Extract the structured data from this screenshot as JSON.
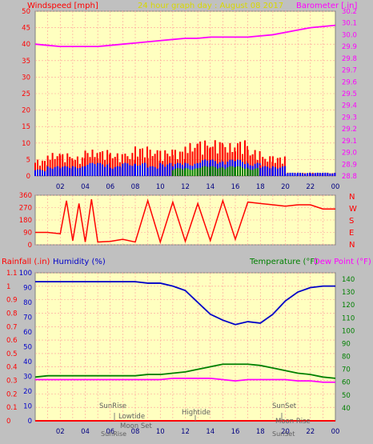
{
  "header": {
    "left_label": "Windspeed [mph]",
    "title": "24 hour graph day : August 08 2017",
    "right_label": "Barometer [.in]"
  },
  "direction_labels": [
    "N",
    "W",
    "S",
    "E",
    "N"
  ],
  "mid_labels": {
    "rainfall": "Rainfall (.in)",
    "humidity": "Humidity (%)",
    "temperature": "Temperature (°F)",
    "dewpoint": "Dew Point (°F)"
  },
  "x_ticks": [
    "02",
    "04",
    "06",
    "08",
    "10",
    "12",
    "14",
    "16",
    "18",
    "20",
    "22",
    "00"
  ],
  "events": {
    "sunrise_upper": "SunRise",
    "lowtide": "Lowtide",
    "moonset": "Moon Set",
    "hightide": "Hightide",
    "sunset_upper": "SunSet",
    "moonrise": "Moon Rise",
    "sunrise_axis": "SunRise",
    "sunset_axis": "SunSet"
  },
  "colors": {
    "plot_bg": "#ffffc0",
    "grid": "#ff9999",
    "wind": "#ff0000",
    "gust": "#0000ff",
    "wind_green": "#008000",
    "barometer": "#ff00ff",
    "direction": "#ff0000",
    "humidity": "#0000c8",
    "temperature": "#008000",
    "dewpoint": "#ff00ff",
    "rain": "#ff0000",
    "axis_text": "#ff0000"
  },
  "chart_data": [
    {
      "type": "line",
      "title": "24 hour graph day : August 08 2017",
      "xlabel": "",
      "ylabel": "Windspeed [mph]",
      "ylim": [
        0,
        50
      ],
      "y_ticks": [
        0,
        5,
        10,
        15,
        20,
        25,
        30,
        35,
        40,
        45,
        50
      ],
      "y2label": "Barometer [.in]",
      "y2lim": [
        28.8,
        30.2
      ],
      "y2_ticks": [
        28.8,
        28.9,
        29.0,
        29.1,
        29.2,
        29.3,
        29.4,
        29.5,
        29.6,
        29.7,
        29.8,
        29.9,
        30.0,
        30.1,
        30.2
      ],
      "x_ticks": [
        "02",
        "04",
        "06",
        "08",
        "10",
        "12",
        "14",
        "16",
        "18",
        "20",
        "22",
        "00"
      ],
      "series": [
        {
          "name": "Barometer [.in]",
          "axis": "right",
          "x": [
            0,
            1,
            2,
            3,
            4,
            5,
            6,
            7,
            8,
            9,
            10,
            11,
            12,
            13,
            14,
            15,
            16,
            17,
            18,
            19,
            20,
            21,
            22,
            23,
            24
          ],
          "values": [
            29.92,
            29.91,
            29.9,
            29.9,
            29.9,
            29.9,
            29.91,
            29.92,
            29.93,
            29.94,
            29.95,
            29.96,
            29.97,
            29.97,
            29.98,
            29.98,
            29.98,
            29.98,
            29.99,
            30.0,
            30.02,
            30.04,
            30.06,
            30.07,
            30.08
          ]
        },
        {
          "name": "Windspeed [mph]",
          "axis": "left",
          "x": [
            0,
            1,
            2,
            3,
            4,
            5,
            6,
            7,
            8,
            9,
            10,
            11,
            12,
            13,
            14,
            15,
            16,
            17,
            18,
            19,
            20,
            21,
            22,
            23,
            24
          ],
          "values": [
            2,
            3,
            3,
            3,
            4,
            4,
            3,
            4,
            4,
            3,
            4,
            4,
            4,
            5,
            5,
            5,
            5,
            4,
            3,
            3,
            1,
            1,
            1,
            1,
            1
          ],
          "gust_values": [
            5,
            7,
            7,
            6,
            8,
            8,
            7,
            7,
            9,
            8,
            8,
            8,
            10,
            11,
            11,
            10,
            11,
            8,
            6,
            6,
            1,
            1,
            1,
            1,
            1
          ]
        }
      ]
    },
    {
      "type": "line",
      "title": "",
      "ylabel": "",
      "ylim": [
        0,
        360
      ],
      "y_ticks": [
        0,
        90,
        180,
        270,
        360
      ],
      "series": [
        {
          "name": "",
          "x": [
            0,
            1,
            2,
            2.5,
            3,
            3.5,
            4,
            4.5,
            5,
            6,
            7,
            8,
            9,
            10,
            11,
            12,
            13,
            14,
            15,
            16,
            17,
            18,
            19,
            20,
            21,
            22,
            23,
            24
          ],
          "values": [
            90,
            90,
            80,
            320,
            30,
            300,
            20,
            330,
            20,
            25,
            40,
            20,
            320,
            20,
            310,
            25,
            300,
            30,
            320,
            40,
            310,
            300,
            290,
            280,
            290,
            290,
            260,
            260
          ]
        }
      ]
    },
    {
      "type": "line",
      "title": "",
      "ylabel": "Rainfall (.in)",
      "ylim": [
        0,
        1.1
      ],
      "y_ticks": [
        0,
        0.1,
        0.2,
        0.3,
        0.4,
        0.5,
        0.6,
        0.7,
        0.8,
        0.9,
        1,
        1.1
      ],
      "y2label": "Humidity (%)",
      "y2lim": [
        0,
        100
      ],
      "y2_ticks": [
        0,
        10,
        20,
        30,
        40,
        50,
        60,
        70,
        80,
        90,
        100
      ],
      "y3label": "Temperature (°F)",
      "y3lim": [
        30,
        145
      ],
      "y3_ticks": [
        40,
        50,
        60,
        70,
        80,
        90,
        100,
        110,
        120,
        130,
        140
      ],
      "x_ticks": [
        "02",
        "04",
        "06",
        "08",
        "10",
        "12",
        "14",
        "16",
        "18",
        "20",
        "22",
        "00"
      ],
      "series": [
        {
          "name": "Humidity (%)",
          "axis": "humidity",
          "x": [
            0,
            1,
            2,
            3,
            4,
            5,
            6,
            7,
            8,
            9,
            10,
            11,
            12,
            13,
            14,
            15,
            16,
            17,
            18,
            19,
            20,
            21,
            22,
            23,
            24
          ],
          "values": [
            94,
            94,
            94,
            94,
            94,
            94,
            94,
            94,
            94,
            93,
            93,
            91,
            88,
            80,
            72,
            68,
            65,
            67,
            66,
            72,
            81,
            87,
            90,
            91,
            91
          ]
        },
        {
          "name": "Temperature (°F)",
          "axis": "temperature",
          "x": [
            0,
            1,
            2,
            3,
            4,
            5,
            6,
            7,
            8,
            9,
            10,
            11,
            12,
            13,
            14,
            15,
            16,
            17,
            18,
            19,
            20,
            21,
            22,
            23,
            24
          ],
          "values": [
            64,
            65,
            65,
            65,
            65,
            65,
            65,
            65,
            65,
            66,
            66,
            67,
            68,
            70,
            72,
            74,
            74,
            74,
            73,
            71,
            69,
            67,
            66,
            64,
            63
          ]
        },
        {
          "name": "Dew Point (°F)",
          "axis": "temperature",
          "x": [
            0,
            1,
            2,
            3,
            4,
            5,
            6,
            7,
            8,
            9,
            10,
            11,
            12,
            13,
            14,
            15,
            16,
            17,
            18,
            19,
            20,
            21,
            22,
            23,
            24
          ],
          "values": [
            62,
            62,
            62,
            62,
            62,
            62,
            62,
            62,
            62,
            62,
            62,
            63,
            63,
            63,
            63,
            62,
            61,
            62,
            62,
            62,
            62,
            61,
            61,
            60,
            60
          ]
        },
        {
          "name": "Rainfall (.in)",
          "axis": "rain",
          "x": [
            0,
            24
          ],
          "values": [
            0,
            0
          ]
        }
      ]
    }
  ]
}
